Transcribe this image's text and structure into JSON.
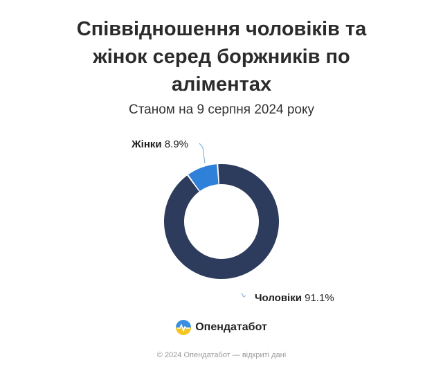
{
  "title_lines": [
    "Співвідношення чоловіків та",
    "жінок серед боржників по",
    "аліментах"
  ],
  "subtitle": "Станом на 9 серпня 2024 року",
  "chart_data": {
    "type": "pie",
    "style": "donut",
    "slices": [
      {
        "label": "Жінки",
        "value": 8.9,
        "value_text": "8.9%",
        "color": "#2f80d9"
      },
      {
        "label": "Чоловіки",
        "value": 91.1,
        "value_text": "91.1%",
        "color": "#2d3b5c"
      }
    ]
  },
  "brand": {
    "name": "Опендатабот",
    "icon": "opendatabot-logo-icon"
  },
  "footer": "© 2024 Опендатабот — відкриті дані"
}
